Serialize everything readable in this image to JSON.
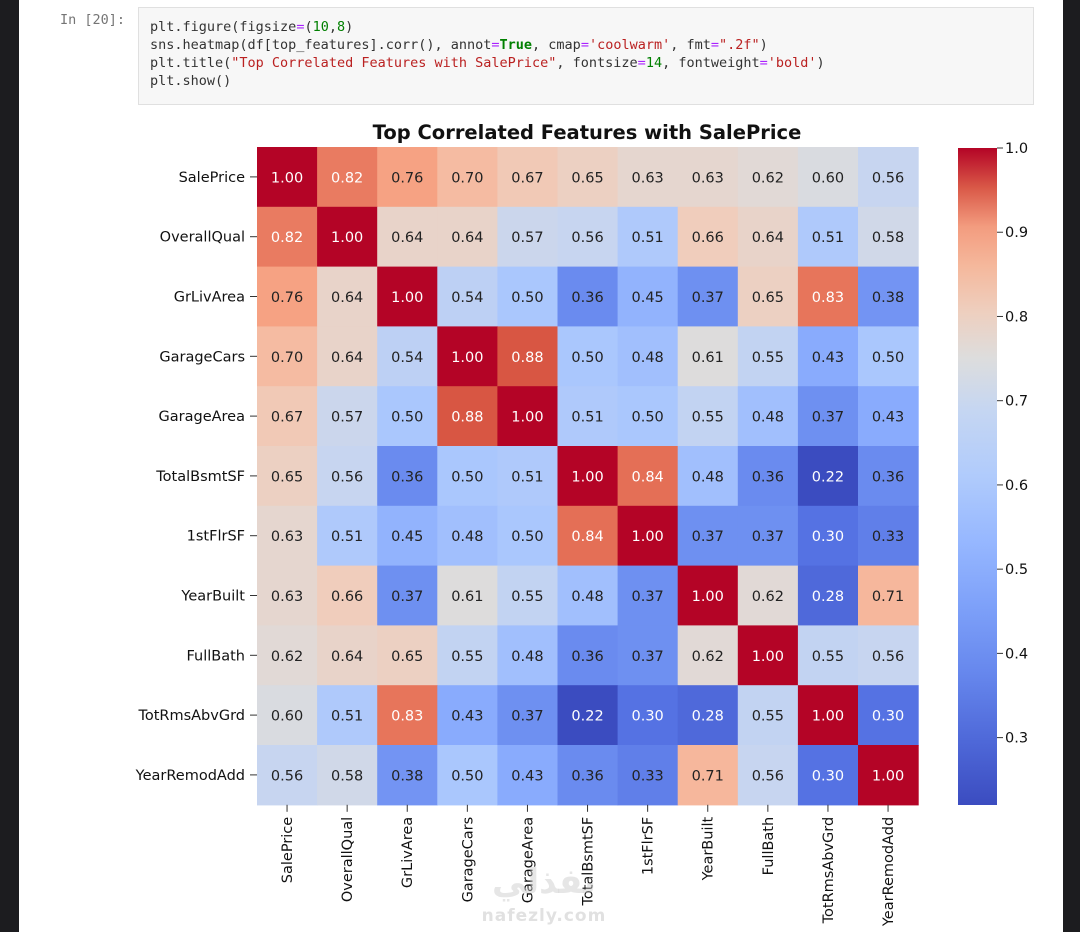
{
  "notebook": {
    "prompt_label": "In [20]:",
    "code_lines": [
      [
        {
          "t": "plt.figure(figsize"
        },
        {
          "t": "=",
          "c": "c-op"
        },
        {
          "t": "("
        },
        {
          "t": "10",
          "c": "c-num"
        },
        {
          "t": ","
        },
        {
          "t": "8",
          "c": "c-num"
        },
        {
          "t": ")"
        }
      ],
      [
        {
          "t": "sns.heatmap(df[top_features].corr(), annot"
        },
        {
          "t": "=",
          "c": "c-op"
        },
        {
          "t": "True",
          "c": "c-kw"
        },
        {
          "t": ", cmap"
        },
        {
          "t": "=",
          "c": "c-op"
        },
        {
          "t": "'coolwarm'",
          "c": "c-str"
        },
        {
          "t": ", fmt"
        },
        {
          "t": "=",
          "c": "c-op"
        },
        {
          "t": "\".2f\"",
          "c": "c-str"
        },
        {
          "t": ")"
        }
      ],
      [
        {
          "t": "plt.title("
        },
        {
          "t": "\"Top Correlated Features with SalePrice\"",
          "c": "c-str"
        },
        {
          "t": ", fontsize"
        },
        {
          "t": "=",
          "c": "c-op"
        },
        {
          "t": "14",
          "c": "c-num"
        },
        {
          "t": ", fontweight"
        },
        {
          "t": "=",
          "c": "c-op"
        },
        {
          "t": "'bold'",
          "c": "c-str"
        },
        {
          "t": ")"
        }
      ],
      [
        {
          "t": "plt.show()"
        }
      ]
    ]
  },
  "watermark": {
    "main_text": "نفذلي",
    "sub_text": "nafezly.com"
  },
  "chart_data": {
    "type": "heatmap",
    "title": "Top Correlated Features with SalePrice",
    "colormap": "coolwarm",
    "color_scale": {
      "min": 0.22,
      "max": 1.0,
      "low_color": "#3b4cc0",
      "mid_color": "#dddddd",
      "high_color": "#b40426"
    },
    "colorbar_ticks": [
      "1.0",
      "0.9",
      "0.8",
      "0.7",
      "0.6",
      "0.5",
      "0.4",
      "0.3"
    ],
    "labels": [
      "SalePrice",
      "OverallQual",
      "GrLivArea",
      "GarageCars",
      "GarageArea",
      "TotalBsmtSF",
      "1stFlrSF",
      "YearBuilt",
      "FullBath",
      "TotRmsAbvGrd",
      "YearRemodAdd"
    ],
    "values": [
      [
        1.0,
        0.82,
        0.76,
        0.7,
        0.67,
        0.65,
        0.63,
        0.63,
        0.62,
        0.6,
        0.56
      ],
      [
        0.82,
        1.0,
        0.64,
        0.64,
        0.57,
        0.56,
        0.51,
        0.66,
        0.64,
        0.51,
        0.58
      ],
      [
        0.76,
        0.64,
        1.0,
        0.54,
        0.5,
        0.36,
        0.45,
        0.37,
        0.65,
        0.83,
        0.38
      ],
      [
        0.7,
        0.64,
        0.54,
        1.0,
        0.88,
        0.5,
        0.48,
        0.61,
        0.55,
        0.43,
        0.5
      ],
      [
        0.67,
        0.57,
        0.5,
        0.88,
        1.0,
        0.51,
        0.5,
        0.55,
        0.48,
        0.37,
        0.43
      ],
      [
        0.65,
        0.56,
        0.36,
        0.5,
        0.51,
        1.0,
        0.84,
        0.48,
        0.36,
        0.22,
        0.36
      ],
      [
        0.63,
        0.51,
        0.45,
        0.48,
        0.5,
        0.84,
        1.0,
        0.37,
        0.37,
        0.3,
        0.33
      ],
      [
        0.63,
        0.66,
        0.37,
        0.61,
        0.55,
        0.48,
        0.37,
        1.0,
        0.62,
        0.28,
        0.71
      ],
      [
        0.62,
        0.64,
        0.65,
        0.55,
        0.48,
        0.36,
        0.37,
        0.62,
        1.0,
        0.55,
        0.56
      ],
      [
        0.6,
        0.51,
        0.83,
        0.43,
        0.37,
        0.22,
        0.3,
        0.28,
        0.55,
        1.0,
        0.3
      ],
      [
        0.56,
        0.58,
        0.38,
        0.5,
        0.43,
        0.36,
        0.33,
        0.71,
        0.56,
        0.3,
        1.0
      ]
    ]
  }
}
